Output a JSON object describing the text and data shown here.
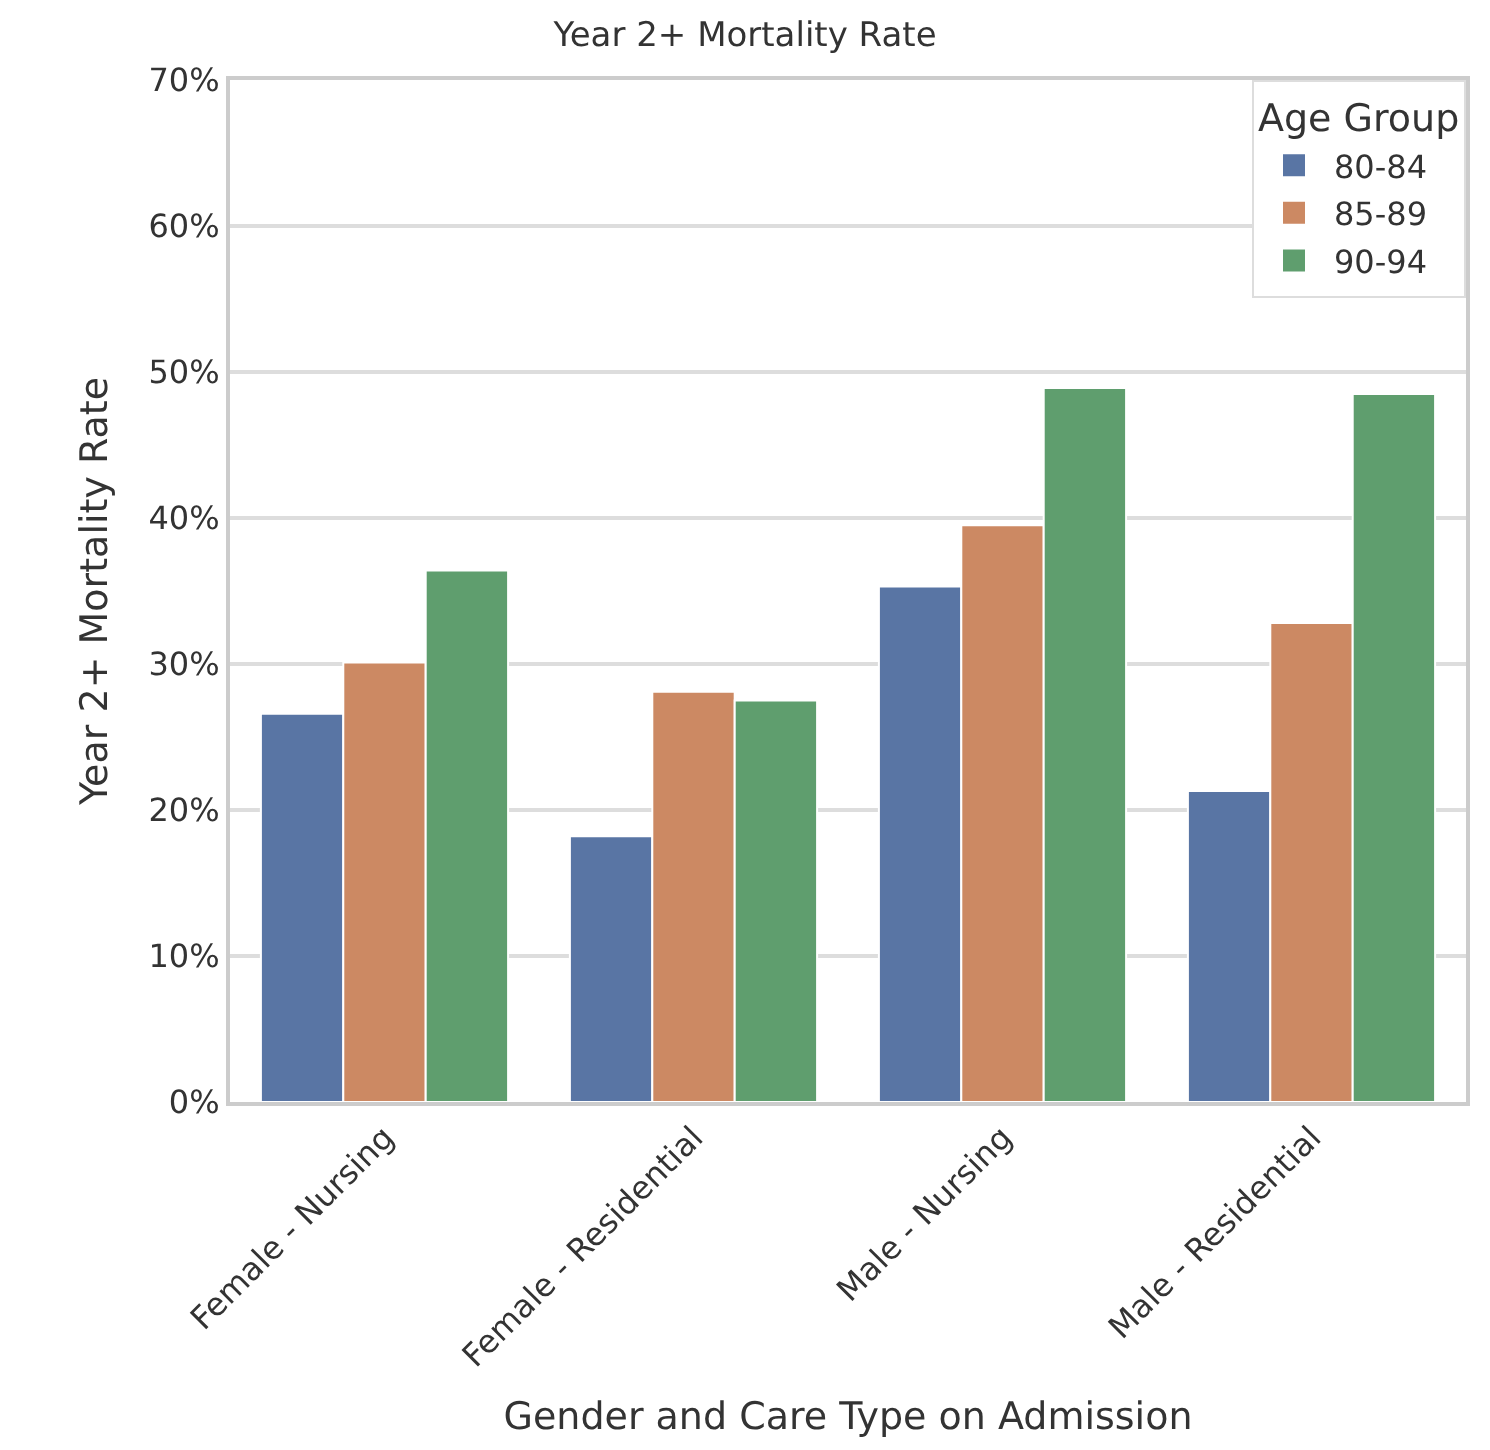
{
  "chart_data": {
    "type": "bar",
    "title": "Year 2+ Mortality Rate",
    "xlabel": "Gender and Care Type on Admission",
    "ylabel": "Year 2+ Mortality Rate",
    "legend_title": "Age Group",
    "categories": [
      "Female - Nursing",
      "Female - Residential",
      "Male - Nursing",
      "Male - Residential"
    ],
    "series": [
      {
        "name": "80-84",
        "color": "#5975a4",
        "values": [
          26.6,
          18.2,
          35.3,
          21.3
        ]
      },
      {
        "name": "85-89",
        "color": "#cc8963",
        "values": [
          30.1,
          28.1,
          39.5,
          32.8
        ]
      },
      {
        "name": "90-94",
        "color": "#5f9e6e",
        "values": [
          36.4,
          27.5,
          48.9,
          48.5
        ]
      }
    ],
    "ylim": [
      0,
      70
    ],
    "yticks": [
      {
        "value": 0,
        "label": "0%"
      },
      {
        "value": 10,
        "label": "10%"
      },
      {
        "value": 20,
        "label": "20%"
      },
      {
        "value": 30,
        "label": "30%"
      },
      {
        "value": 40,
        "label": "40%"
      },
      {
        "value": 50,
        "label": "50%"
      },
      {
        "value": 60,
        "label": "60%"
      },
      {
        "value": 70,
        "label": "70%"
      }
    ],
    "grid": "y",
    "legend": "top right"
  }
}
